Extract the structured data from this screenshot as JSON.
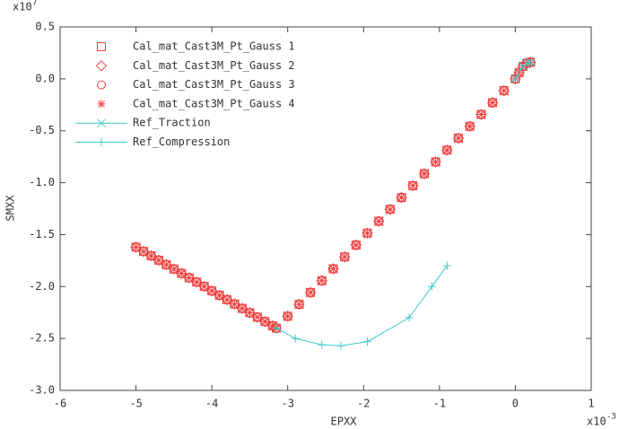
{
  "chart_data": {
    "type": "scatter",
    "x_label": "EPXX",
    "y_label": "SMXX",
    "x_multiplier": {
      "base": "x10",
      "exponent": "-3"
    },
    "y_multiplier": {
      "base": "x10",
      "exponent": "7"
    },
    "xlim": [
      -6,
      1
    ],
    "ylim": [
      -3,
      0.5
    ],
    "xticks": [
      -6,
      -5,
      -4,
      -3,
      -2,
      -1,
      0,
      1
    ],
    "yticks": [
      0.5,
      {
        "value": 0,
        "label": "0.0"
      },
      -0.5,
      {
        "value": -1,
        "label": "-1.0"
      },
      -1.5,
      {
        "value": -2,
        "label": "-2.0"
      },
      -2.5,
      {
        "value": -3,
        "label": "-3.0"
      }
    ],
    "legend": "top-left",
    "series": [
      {
        "name": "Cal_mat_Cast3M_Pt_Gauss 1",
        "color": "#f04040",
        "marker": "square",
        "x": [
          -5.0,
          -4.9,
          -4.8,
          -4.7,
          -4.6,
          -4.5,
          -4.4,
          -4.3,
          -4.2,
          -4.1,
          -4.0,
          -3.9,
          -3.8,
          -3.7,
          -3.6,
          -3.5,
          -3.4,
          -3.3,
          -3.2,
          -3.15,
          -3.0,
          -2.85,
          -2.7,
          -2.55,
          -2.4,
          -2.25,
          -2.1,
          -1.95,
          -1.8,
          -1.65,
          -1.5,
          -1.35,
          -1.2,
          -1.05,
          -0.9,
          -0.75,
          -0.6,
          -0.45,
          -0.3,
          -0.15,
          0.0,
          0.05,
          0.1,
          0.15,
          0.2
        ],
        "values": [
          -1.62,
          -1.662,
          -1.704,
          -1.746,
          -1.789,
          -1.831,
          -1.873,
          -1.915,
          -1.957,
          -1.999,
          -2.042,
          -2.084,
          -2.126,
          -2.168,
          -2.21,
          -2.252,
          -2.295,
          -2.337,
          -2.379,
          -2.4,
          -2.286,
          -2.171,
          -2.057,
          -1.943,
          -1.829,
          -1.714,
          -1.6,
          -1.486,
          -1.371,
          -1.257,
          -1.143,
          -1.029,
          -0.914,
          -0.8,
          -0.686,
          -0.571,
          -0.457,
          -0.343,
          -0.229,
          -0.114,
          0.0,
          0.06,
          0.12,
          0.15,
          0.16
        ]
      },
      {
        "name": "Cal_mat_Cast3M_Pt_Gauss 2",
        "color": "#f04040",
        "marker": "diamond",
        "x": [
          -5.0,
          -4.9,
          -4.8,
          -4.7,
          -4.6,
          -4.5,
          -4.4,
          -4.3,
          -4.2,
          -4.1,
          -4.0,
          -3.9,
          -3.8,
          -3.7,
          -3.6,
          -3.5,
          -3.4,
          -3.3,
          -3.2,
          -3.15,
          -3.0,
          -2.85,
          -2.7,
          -2.55,
          -2.4,
          -2.25,
          -2.1,
          -1.95,
          -1.8,
          -1.65,
          -1.5,
          -1.35,
          -1.2,
          -1.05,
          -0.9,
          -0.75,
          -0.6,
          -0.45,
          -0.3,
          -0.15,
          0.0,
          0.05,
          0.1,
          0.15,
          0.2
        ],
        "values": [
          -1.62,
          -1.662,
          -1.704,
          -1.746,
          -1.789,
          -1.831,
          -1.873,
          -1.915,
          -1.957,
          -1.999,
          -2.042,
          -2.084,
          -2.126,
          -2.168,
          -2.21,
          -2.252,
          -2.295,
          -2.337,
          -2.379,
          -2.4,
          -2.286,
          -2.171,
          -2.057,
          -1.943,
          -1.829,
          -1.714,
          -1.6,
          -1.486,
          -1.371,
          -1.257,
          -1.143,
          -1.029,
          -0.914,
          -0.8,
          -0.686,
          -0.571,
          -0.457,
          -0.343,
          -0.229,
          -0.114,
          0.0,
          0.06,
          0.12,
          0.15,
          0.16
        ]
      },
      {
        "name": "Cal_mat_Cast3M_Pt_Gauss 3",
        "color": "#f04040",
        "marker": "circle",
        "x": [
          -5.0,
          -4.9,
          -4.8,
          -4.7,
          -4.6,
          -4.5,
          -4.4,
          -4.3,
          -4.2,
          -4.1,
          -4.0,
          -3.9,
          -3.8,
          -3.7,
          -3.6,
          -3.5,
          -3.4,
          -3.3,
          -3.2,
          -3.15,
          -3.0,
          -2.85,
          -2.7,
          -2.55,
          -2.4,
          -2.25,
          -2.1,
          -1.95,
          -1.8,
          -1.65,
          -1.5,
          -1.35,
          -1.2,
          -1.05,
          -0.9,
          -0.75,
          -0.6,
          -0.45,
          -0.3,
          -0.15,
          0.0,
          0.05,
          0.1,
          0.15,
          0.2
        ],
        "values": [
          -1.62,
          -1.662,
          -1.704,
          -1.746,
          -1.789,
          -1.831,
          -1.873,
          -1.915,
          -1.957,
          -1.999,
          -2.042,
          -2.084,
          -2.126,
          -2.168,
          -2.21,
          -2.252,
          -2.295,
          -2.337,
          -2.379,
          -2.4,
          -2.286,
          -2.171,
          -2.057,
          -1.943,
          -1.829,
          -1.714,
          -1.6,
          -1.486,
          -1.371,
          -1.257,
          -1.143,
          -1.029,
          -0.914,
          -0.8,
          -0.686,
          -0.571,
          -0.457,
          -0.343,
          -0.229,
          -0.114,
          0.0,
          0.06,
          0.12,
          0.15,
          0.16
        ]
      },
      {
        "name": "Cal_mat_Cast3M_Pt_Gauss 4",
        "color": "#f04040",
        "marker": "asterisk",
        "x": [
          -5.0,
          -4.9,
          -4.8,
          -4.7,
          -4.6,
          -4.5,
          -4.4,
          -4.3,
          -4.2,
          -4.1,
          -4.0,
          -3.9,
          -3.8,
          -3.7,
          -3.6,
          -3.5,
          -3.4,
          -3.3,
          -3.2,
          -3.15,
          -3.0,
          -2.85,
          -2.7,
          -2.55,
          -2.4,
          -2.25,
          -2.1,
          -1.95,
          -1.8,
          -1.65,
          -1.5,
          -1.35,
          -1.2,
          -1.05,
          -0.9,
          -0.75,
          -0.6,
          -0.45,
          -0.3,
          -0.15,
          0.0,
          0.05,
          0.1,
          0.15,
          0.2
        ],
        "values": [
          -1.62,
          -1.662,
          -1.704,
          -1.746,
          -1.789,
          -1.831,
          -1.873,
          -1.915,
          -1.957,
          -1.999,
          -2.042,
          -2.084,
          -2.126,
          -2.168,
          -2.21,
          -2.252,
          -2.295,
          -2.337,
          -2.379,
          -2.4,
          -2.286,
          -2.171,
          -2.057,
          -1.943,
          -1.829,
          -1.714,
          -1.6,
          -1.486,
          -1.371,
          -1.257,
          -1.143,
          -1.029,
          -0.914,
          -0.8,
          -0.686,
          -0.571,
          -0.457,
          -0.343,
          -0.229,
          -0.114,
          0.0,
          0.06,
          0.12,
          0.15,
          0.16
        ]
      },
      {
        "name": "Ref_Traction",
        "color": "#40c8c8",
        "marker": "cross",
        "line": true,
        "x": [
          0.0,
          0.1,
          0.15,
          0.2
        ],
        "values": [
          0.0,
          0.12,
          0.15,
          0.16
        ]
      },
      {
        "name": "Ref_Compression",
        "color": "#40c8c8",
        "marker": "plus",
        "line": true,
        "x": [
          -3.15,
          -2.9,
          -2.55,
          -2.3,
          -1.95,
          -1.4,
          -1.1,
          -0.9
        ],
        "values": [
          -2.4,
          -2.5,
          -2.56,
          -2.57,
          -2.53,
          -2.3,
          -2.0,
          -1.8
        ]
      }
    ]
  }
}
